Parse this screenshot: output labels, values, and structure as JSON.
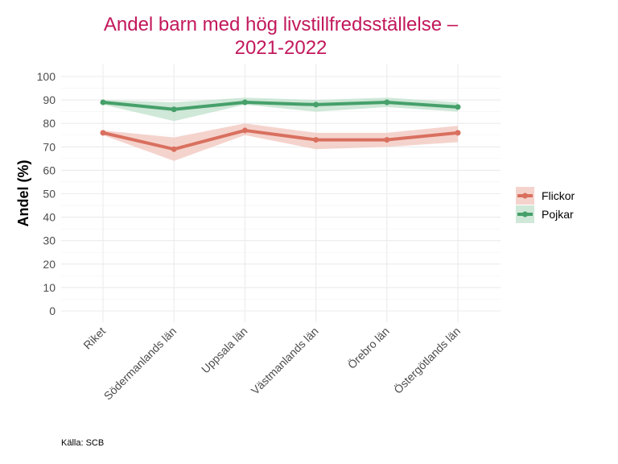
{
  "chart_data": {
    "type": "line",
    "title": "Andel barn med hög livstillfredsställelse –",
    "subtitle": "2021-2022",
    "xlabel": "",
    "ylabel": "Andel (%)",
    "ylim": [
      0,
      100
    ],
    "yticks": [
      0,
      10,
      20,
      30,
      40,
      50,
      60,
      70,
      80,
      90,
      100
    ],
    "categories": [
      "Riket",
      "Södermanlands län",
      "Uppsala län",
      "Västmanlands län",
      "Örebro län",
      "Östergötlands län"
    ],
    "series": [
      {
        "name": "Flickor",
        "color": "#d9705f",
        "band_color": "#f2c4bc",
        "values": [
          76,
          69,
          77,
          73,
          73,
          76
        ],
        "lower": [
          75,
          64,
          75,
          69,
          70,
          72
        ],
        "upper": [
          77,
          74,
          80,
          76,
          76,
          79
        ]
      },
      {
        "name": "Pojkar",
        "color": "#46a06a",
        "band_color": "#bfe0cb",
        "values": [
          89,
          86,
          89,
          88,
          89,
          87
        ],
        "lower": [
          88,
          81,
          88,
          85,
          87,
          85
        ],
        "upper": [
          90,
          89,
          91,
          90,
          91,
          89
        ]
      }
    ],
    "legend_position": "right",
    "caption": "Källa: SCB"
  }
}
